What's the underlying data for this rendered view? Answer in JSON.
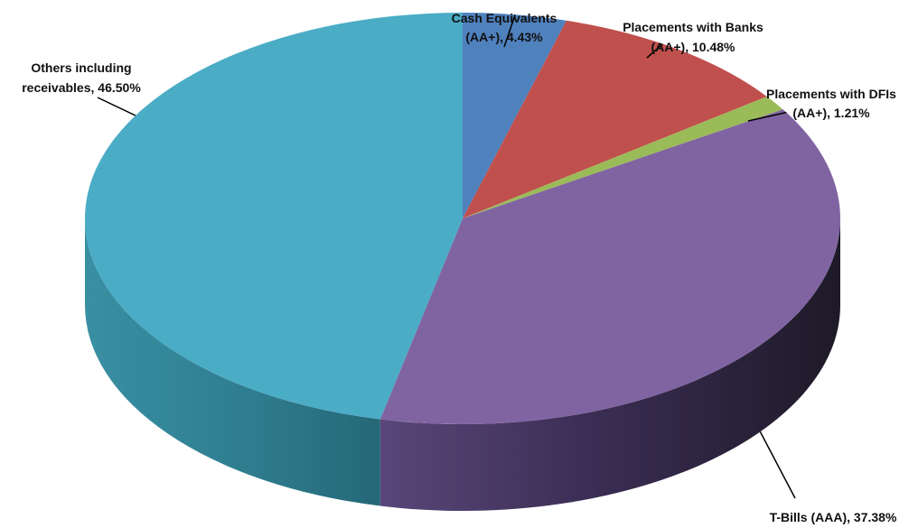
{
  "chart_data": {
    "type": "pie",
    "three_d": true,
    "slices": [
      {
        "label_line1": "Cash Equivalents",
        "label_line2": "(AA+), 4.43%",
        "value": 4.43,
        "color": "#4F81BD",
        "side_color": "#2E4E78"
      },
      {
        "label_line1": "Placements with Banks",
        "label_line2": "(AA+), 10.48%",
        "value": 10.48,
        "color": "#C0504D",
        "side_color": "#7A2E2C"
      },
      {
        "label_line1": "Placements with DFIs",
        "label_line2": "(AA+), 1.21%",
        "value": 1.21,
        "color": "#9BBB59",
        "side_color": "#5E7634"
      },
      {
        "label_line1": "T-Bills (AAA), 37.38%",
        "label_line2": "",
        "value": 37.38,
        "color": "#8064A2",
        "side_color": "#2E2540"
      },
      {
        "label_line1": "Others including",
        "label_line2": "receivables, 46.50%",
        "value": 46.5,
        "color": "#4BACC6",
        "side_color": "#2F7F91"
      }
    ]
  }
}
